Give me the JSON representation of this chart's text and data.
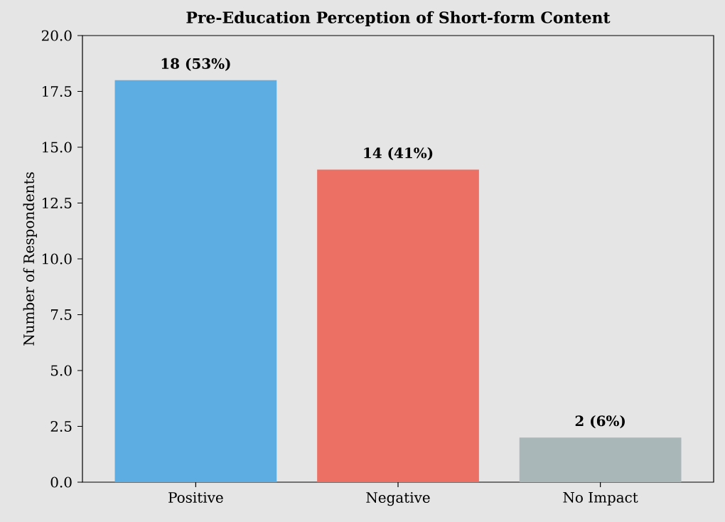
{
  "chart_data": {
    "type": "bar",
    "title": "Pre-Education Perception of Short-form Content",
    "ylabel": "Number of Respondents",
    "categories": [
      "Positive",
      "Negative",
      "No Impact"
    ],
    "values": [
      18,
      14,
      2
    ],
    "colors": [
      "#5dade2",
      "#ec7063",
      "#aab7b8"
    ],
    "value_labels": [
      "18 (53%)",
      "14 (41%)",
      "2 (6%)"
    ],
    "ylim": [
      0,
      20
    ],
    "yticks": [
      {
        "value": 0,
        "label": "0.0"
      },
      {
        "value": 2.5,
        "label": "2.5"
      },
      {
        "value": 5,
        "label": "5.0"
      },
      {
        "value": 7.5,
        "label": "7.5"
      },
      {
        "value": 10,
        "label": "10.0"
      },
      {
        "value": 12.5,
        "label": "12.5"
      },
      {
        "value": 15,
        "label": "15.0"
      },
      {
        "value": 17.5,
        "label": "17.5"
      },
      {
        "value": 20,
        "label": "20.0"
      }
    ],
    "grid": false
  }
}
